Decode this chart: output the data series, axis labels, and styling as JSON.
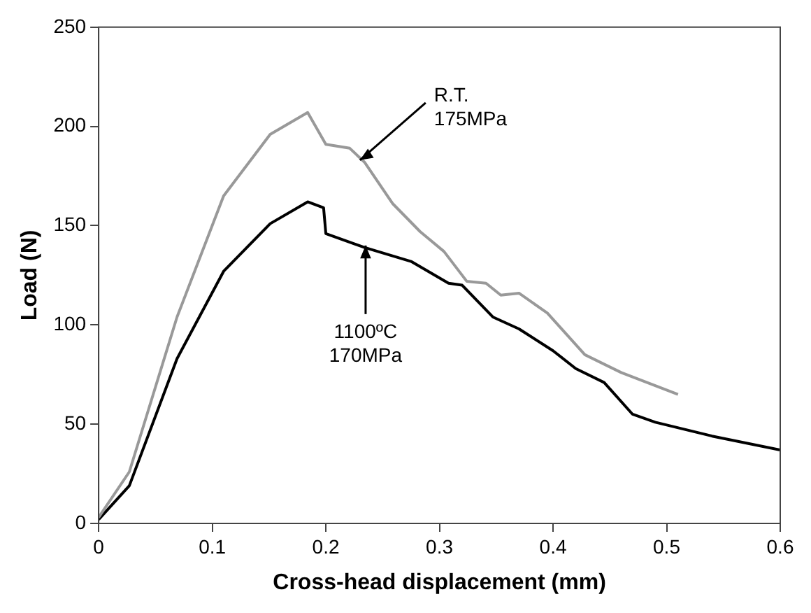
{
  "chart_data": {
    "type": "line",
    "xlabel": "Cross-head displacement (mm)",
    "ylabel": "Load (N)",
    "xlim": [
      0,
      0.6
    ],
    "xticks": [
      0,
      0.1,
      0.2,
      0.3,
      0.4,
      0.5,
      0.6
    ],
    "ylim": [
      0,
      250
    ],
    "yticks": [
      0,
      50,
      100,
      150,
      200,
      250
    ],
    "grid": false,
    "legend": false,
    "marker": "none",
    "line_style": "solid",
    "series": [
      {
        "color": "#999999",
        "x": [
          0,
          0.027,
          0.069,
          0.11,
          0.151,
          0.184,
          0.2,
          0.221,
          0.234,
          0.259,
          0.283,
          0.304,
          0.324,
          0.341,
          0.354,
          0.37,
          0.395,
          0.428,
          0.46,
          0.51
        ],
        "values": [
          3,
          26,
          104,
          165,
          196,
          207,
          191,
          189,
          182,
          161,
          147,
          137,
          122,
          121,
          115,
          116,
          106,
          85,
          76,
          65
        ]
      },
      {
        "color": "#000000",
        "x": [
          0,
          0.027,
          0.069,
          0.11,
          0.151,
          0.184,
          0.198,
          0.2,
          0.234,
          0.275,
          0.308,
          0.32,
          0.347,
          0.37,
          0.4,
          0.42,
          0.445,
          0.47,
          0.49,
          0.54,
          0.6
        ],
        "values": [
          2,
          19,
          83,
          127,
          151,
          162,
          159,
          146,
          139,
          132,
          121,
          120,
          104,
          98,
          87,
          78,
          71,
          55,
          51,
          44,
          37
        ]
      }
    ],
    "annotations": [
      {
        "text": "R.T.\n175MPa",
        "x": 0.23,
        "y": 183
      },
      {
        "text": "1100ºC\n170MPa",
        "x": 0.235,
        "y": 140
      }
    ]
  }
}
